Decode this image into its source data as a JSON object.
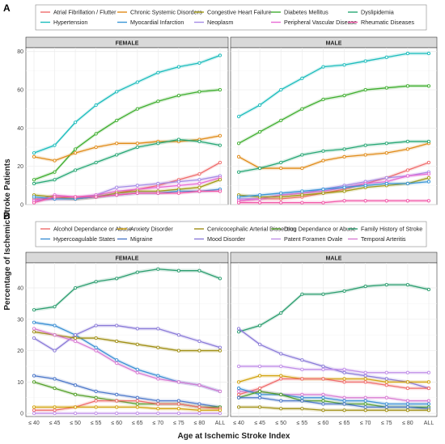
{
  "colors": {
    "Atrial Fibrillation / Flutter": "#ef6b6b",
    "Chronic Systemic Disorders": "#e08a17",
    "Congestive Heart Failure": "#a39a12",
    "Diabetes Mellitus": "#3fae2f",
    "Dyslipidemia": "#27a775",
    "Hypertension": "#1bbcbc",
    "Myocardial Infarction": "#3a96d6",
    "Neoplasm": "#a58be6",
    "Peripheral Vascular Disease": "#e76ad5",
    "Rheumatic Diseases": "#f154a6",
    "Alcohol Dependance or Abuse": "#ef6b6b",
    "Anxiety Disorder": "#d1a30c",
    "Cervicocephalic Arterial Dissection": "#a08f15",
    "Drug Dependance or Abuse": "#55a02a",
    "Family History of Stroke": "#2a9d6e",
    "Hypercoagulable States": "#3a8fd4",
    "Migraine": "#4b77c9",
    "Mood Disorder": "#8a7ad8",
    "Patent Foramen Ovale": "#c08ee8",
    "Temporal Arteritis": "#d87bd2"
  },
  "chart_data": [
    {
      "panel": "A",
      "type": "line",
      "categories": [
        "≤ 40",
        "≤ 45",
        "≤ 50",
        "≤ 55",
        "≤ 60",
        "≤ 65",
        "≤ 70",
        "≤ 75",
        "≤ 80",
        "ALL"
      ],
      "ylim": [
        0,
        82
      ],
      "yticks": [
        0,
        20,
        40,
        60,
        80
      ],
      "legend": [
        "Atrial Fibrillation / Flutter",
        "Chronic Systemic Disorders",
        "Congestive Heart Failure",
        "Diabetes Mellitus",
        "Dyslipidemia",
        "Hypertension",
        "Myocardial Infarction",
        "Neoplasm",
        "Peripheral Vascular Disease",
        "Rheumatic Diseases"
      ],
      "facets": [
        {
          "label": "FEMALE",
          "series": [
            {
              "name": "Hypertension",
              "values": [
                27,
                31,
                43,
                52,
                59,
                64,
                69,
                72,
                74,
                78
              ]
            },
            {
              "name": "Diabetes Mellitus",
              "values": [
                13,
                17,
                29,
                37,
                44,
                50,
                54,
                57,
                59,
                60
              ]
            },
            {
              "name": "Chronic Systemic Disorders",
              "values": [
                25,
                23,
                27,
                30,
                32,
                32,
                33,
                33,
                34,
                36
              ]
            },
            {
              "name": "Dyslipidemia",
              "values": [
                11,
                13,
                18,
                22,
                26,
                30,
                32,
                34,
                33,
                31
              ]
            },
            {
              "name": "Atrial Fibrillation / Flutter",
              "values": [
                3,
                3,
                3,
                4,
                6,
                8,
                10,
                13,
                16,
                22
              ]
            },
            {
              "name": "Neoplasm",
              "values": [
                2,
                3,
                3,
                5,
                9,
                10,
                11,
                12,
                13,
                15
              ]
            },
            {
              "name": "Peripheral Vascular Disease",
              "values": [
                2,
                5,
                4,
                5,
                7,
                8,
                9,
                10,
                11,
                14
              ]
            },
            {
              "name": "Congestive Heart Failure",
              "values": [
                5,
                4,
                3,
                4,
                6,
                7,
                7,
                8,
                9,
                13
              ]
            },
            {
              "name": "Myocardial Infarction",
              "values": [
                4,
                3,
                3,
                4,
                5,
                6,
                6,
                7,
                7,
                8
              ]
            },
            {
              "name": "Rheumatic Diseases",
              "values": [
                1,
                4,
                4,
                4,
                5,
                6,
                6,
                6,
                7,
                7
              ]
            }
          ]
        },
        {
          "label": "MALE",
          "series": [
            {
              "name": "Hypertension",
              "values": [
                46,
                52,
                60,
                66,
                72,
                73,
                75,
                77,
                79,
                79
              ]
            },
            {
              "name": "Diabetes Mellitus",
              "values": [
                32,
                38,
                44,
                50,
                55,
                57,
                60,
                61,
                62,
                62
              ]
            },
            {
              "name": "Chronic Systemic Disorders",
              "values": [
                25,
                19,
                19,
                19,
                23,
                25,
                26,
                27,
                29,
                32
              ]
            },
            {
              "name": "Dyslipidemia",
              "values": [
                17,
                19,
                22,
                26,
                28,
                29,
                31,
                32,
                33,
                33
              ]
            },
            {
              "name": "Atrial Fibrillation / Flutter",
              "values": [
                2,
                3,
                3,
                4,
                6,
                8,
                11,
                14,
                18,
                22
              ]
            },
            {
              "name": "Neoplasm",
              "values": [
                3,
                3,
                5,
                6,
                8,
                10,
                12,
                14,
                15,
                17
              ]
            },
            {
              "name": "Peripheral Vascular Disease",
              "values": [
                2,
                3,
                5,
                6,
                7,
                9,
                11,
                12,
                15,
                16
              ]
            },
            {
              "name": "Congestive Heart Failure",
              "values": [
                5,
                4,
                4,
                5,
                6,
                7,
                9,
                10,
                11,
                14
              ]
            },
            {
              "name": "Myocardial Infarction",
              "values": [
                4,
                5,
                6,
                7,
                8,
                9,
                10,
                11,
                11,
                12
              ]
            },
            {
              "name": "Rheumatic Diseases",
              "values": [
                1,
                1,
                1,
                1,
                1,
                2,
                2,
                2,
                2,
                2
              ]
            }
          ]
        }
      ]
    },
    {
      "panel": "B",
      "type": "line",
      "categories": [
        "≤ 40",
        "≤ 45",
        "≤ 50",
        "≤ 55",
        "≤ 60",
        "≤ 65",
        "≤ 70",
        "≤ 75",
        "≤ 80",
        "ALL"
      ],
      "ylim": [
        -1,
        48
      ],
      "yticks": [
        0,
        10,
        20,
        30,
        40
      ],
      "legend": [
        "Alcohol Dependance or Abuse",
        "Anxiety Disorder",
        "Cervicocephalic Arterial Dissection",
        "Drug Dependance or Abuse",
        "Family History of Stroke",
        "Hypercoagulable States",
        "Migraine",
        "Mood Disorder",
        "Patent Foramen Ovale",
        "Temporal Arteritis"
      ],
      "facets": [
        {
          "label": "FEMALE",
          "series": [
            {
              "name": "Family History of Stroke",
              "values": [
                33,
                34,
                40,
                42,
                43,
                45,
                46,
                45.5,
                45.5,
                43
              ]
            },
            {
              "name": "Hypercoagulable States",
              "values": [
                29,
                28,
                25,
                21,
                17,
                14,
                12,
                10,
                9,
                7
              ]
            },
            {
              "name": "Mood Disorder",
              "values": [
                24,
                20,
                25,
                28,
                28,
                27,
                27,
                25,
                23,
                21
              ]
            },
            {
              "name": "Cervicocephalic Arterial Dissection",
              "values": [
                26,
                25,
                24,
                24,
                23,
                22,
                21,
                20,
                20,
                20
              ]
            },
            {
              "name": "Temporal Arteritis",
              "values": [
                27,
                25,
                23,
                20,
                16,
                13,
                11,
                10,
                9,
                7
              ]
            },
            {
              "name": "Migraine",
              "values": [
                12,
                11,
                9,
                7,
                6,
                5,
                4,
                4,
                3,
                2
              ]
            },
            {
              "name": "Drug Dependance or Abuse",
              "values": [
                10,
                8,
                6,
                5,
                4,
                3,
                3,
                3,
                2,
                2
              ]
            },
            {
              "name": "Alcohol Dependance or Abuse",
              "values": [
                1,
                1,
                2,
                4,
                4,
                4,
                3,
                3,
                2,
                1.5
              ]
            },
            {
              "name": "Anxiety Disorder",
              "values": [
                2,
                2,
                2,
                2,
                2,
                2,
                1.5,
                1.5,
                1,
                1
              ]
            },
            {
              "name": "Patent Foramen Ovale",
              "values": [
                0,
                0,
                0,
                0,
                0,
                0,
                0,
                0,
                0,
                0
              ]
            }
          ]
        },
        {
          "label": "MALE",
          "series": [
            {
              "name": "Family History of Stroke",
              "values": [
                26,
                28,
                32,
                38,
                38,
                39,
                40.5,
                41,
                41,
                39.5
              ]
            },
            {
              "name": "Mood Disorder",
              "values": [
                27,
                22,
                19,
                17,
                15,
                13,
                12,
                11,
                10,
                8
              ]
            },
            {
              "name": "Patent Foramen Ovale",
              "values": [
                15,
                15,
                15,
                14,
                14,
                14,
                13,
                13,
                13,
                13
              ]
            },
            {
              "name": "Anxiety Disorder",
              "values": [
                10,
                12,
                12,
                11,
                11,
                11,
                11,
                10,
                10,
                10
              ]
            },
            {
              "name": "Alcohol Dependance or Abuse",
              "values": [
                6,
                8,
                11,
                11,
                11,
                10,
                10,
                9,
                8,
                8
              ]
            },
            {
              "name": "Temporal Arteritis",
              "values": [
                7,
                7,
                6,
                6,
                6,
                5,
                5,
                5,
                4,
                4
              ]
            },
            {
              "name": "Hypercoagulable States",
              "values": [
                8,
                6,
                6,
                5,
                5,
                4,
                4,
                3,
                3,
                3
              ]
            },
            {
              "name": "Drug Dependance or Abuse",
              "values": [
                5,
                7,
                6,
                4,
                4,
                3,
                3,
                2,
                2,
                2
              ]
            },
            {
              "name": "Migraine",
              "values": [
                5,
                5,
                4,
                4,
                3,
                3,
                2,
                2,
                2,
                1.5
              ]
            },
            {
              "name": "Cervicocephalic Arterial Dissection",
              "values": [
                2,
                2,
                1.5,
                1.5,
                1,
                1,
                1,
                1,
                1,
                1
              ]
            }
          ]
        }
      ]
    }
  ],
  "axis": {
    "y_title": "Percentage of Ischemic Stroke Patients",
    "x_title": "Age at Ischemic Stroke Index"
  }
}
